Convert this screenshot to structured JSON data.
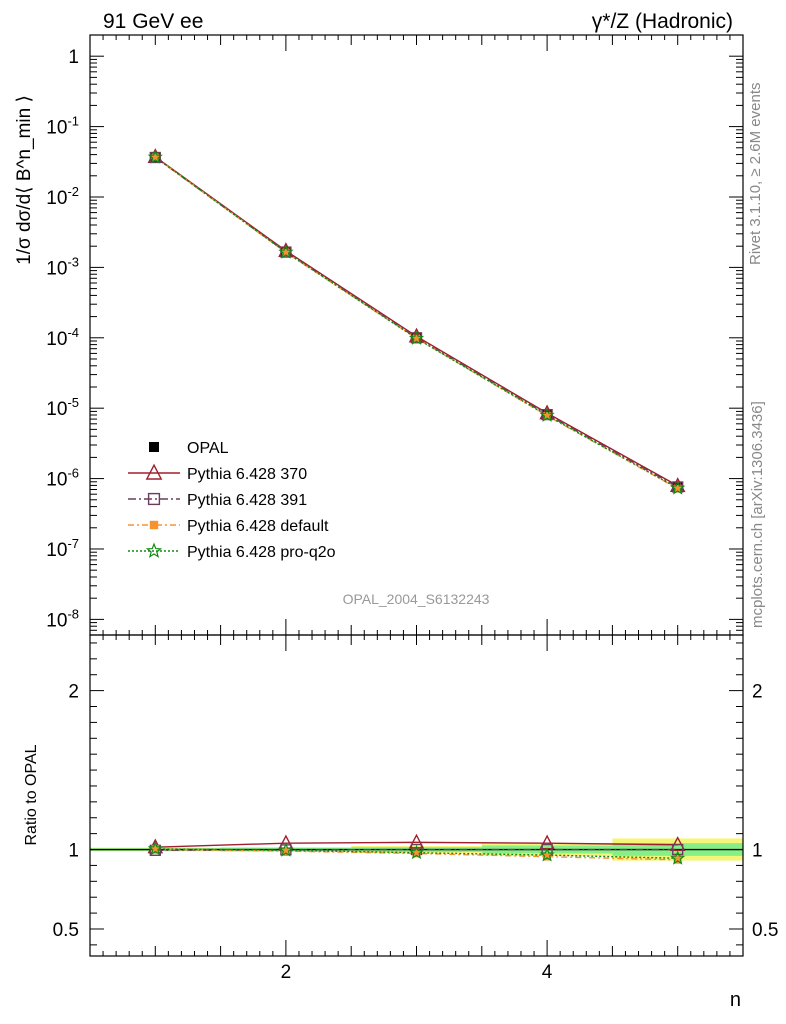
{
  "header": {
    "left_label": "91 GeV ee",
    "right_label": "γ*/Z (Hadronic)"
  },
  "side_labels": {
    "rivet": "Rivet 3.1.10, ≥ 2.6M events",
    "mcplots": "mcplots.cern.ch [arXiv:1306.3436]"
  },
  "watermark": "OPAL_2004_S6132243",
  "colors": {
    "OPAL": "#000000",
    "Pythia 6.428 370": "#a01f2e",
    "Pythia 6.428 391": "#6a3d5a",
    "Pythia 6.428 default": "#f59331",
    "Pythia 6.428 pro-q2o": "#138a13",
    "band_inner": "#86f086",
    "band_outer": "#f5f57a"
  },
  "chart_data": [
    {
      "type": "line",
      "ylabel": "1/σ dσ/d⟨ B^n_min ⟩",
      "xlim": [
        0.5,
        5.5
      ],
      "ylim": [
        6e-09,
        2
      ],
      "yscale": "log",
      "ytick_labels": [
        "1",
        "10^-1",
        "10^-2",
        "10^-3",
        "10^-4",
        "10^-5",
        "10^-6",
        "10^-7",
        "10^-8"
      ],
      "legend_position": "lower-left",
      "x": [
        1,
        2,
        3,
        4,
        5
      ],
      "series": [
        {
          "name": "OPAL",
          "marker": "square",
          "values": [
            0.0365,
            0.00165,
            0.0001,
            8.2e-06,
            7.7e-07
          ]
        },
        {
          "name": "Pythia 6.428 370",
          "marker": "triangle",
          "values": [
            0.0372,
            0.00172,
            0.000105,
            8.5e-06,
            7.9e-07
          ]
        },
        {
          "name": "Pythia 6.428 391",
          "marker": "open-square",
          "values": [
            0.0364,
            0.00165,
            0.0001,
            8.1e-06,
            7.6e-07
          ]
        },
        {
          "name": "Pythia 6.428 default",
          "marker": "filled-square",
          "values": [
            0.0366,
            0.00163,
            9.8e-05,
            7.8e-06,
            7.2e-07
          ]
        },
        {
          "name": "Pythia 6.428 pro-q2o",
          "marker": "star",
          "values": [
            0.0367,
            0.00164,
            9.8e-05,
            7.9e-06,
            7.3e-07
          ]
        }
      ]
    },
    {
      "type": "line",
      "xlabel": "n",
      "ylabel": "Ratio to OPAL",
      "xlim": [
        0.5,
        5.5
      ],
      "ylim": [
        0.33,
        2.35
      ],
      "xtick_labels": [
        "2",
        "4"
      ],
      "ytick_labels": [
        "2",
        "1",
        "0.5"
      ],
      "x": [
        1,
        2,
        3,
        4,
        5
      ],
      "band": {
        "bins": [
          [
            0.5,
            1.5
          ],
          [
            1.5,
            2.5
          ],
          [
            2.5,
            3.5
          ],
          [
            3.5,
            4.5
          ],
          [
            4.5,
            5.5
          ]
        ],
        "inner": [
          0.008,
          0.01,
          0.015,
          0.025,
          0.04
        ],
        "outer": [
          0.012,
          0.016,
          0.022,
          0.04,
          0.07
        ]
      },
      "series": [
        {
          "name": "Pythia 6.428 370",
          "values": [
            1.015,
            1.04,
            1.045,
            1.04,
            1.03
          ]
        },
        {
          "name": "Pythia 6.428 391",
          "values": [
            0.995,
            0.998,
            1.0,
            1.0,
            1.0
          ]
        },
        {
          "name": "Pythia 6.428 default",
          "values": [
            1.003,
            0.99,
            0.975,
            0.955,
            0.935
          ]
        },
        {
          "name": "Pythia 6.428 pro-q2o",
          "values": [
            1.004,
            0.995,
            0.98,
            0.965,
            0.945
          ]
        }
      ]
    }
  ]
}
